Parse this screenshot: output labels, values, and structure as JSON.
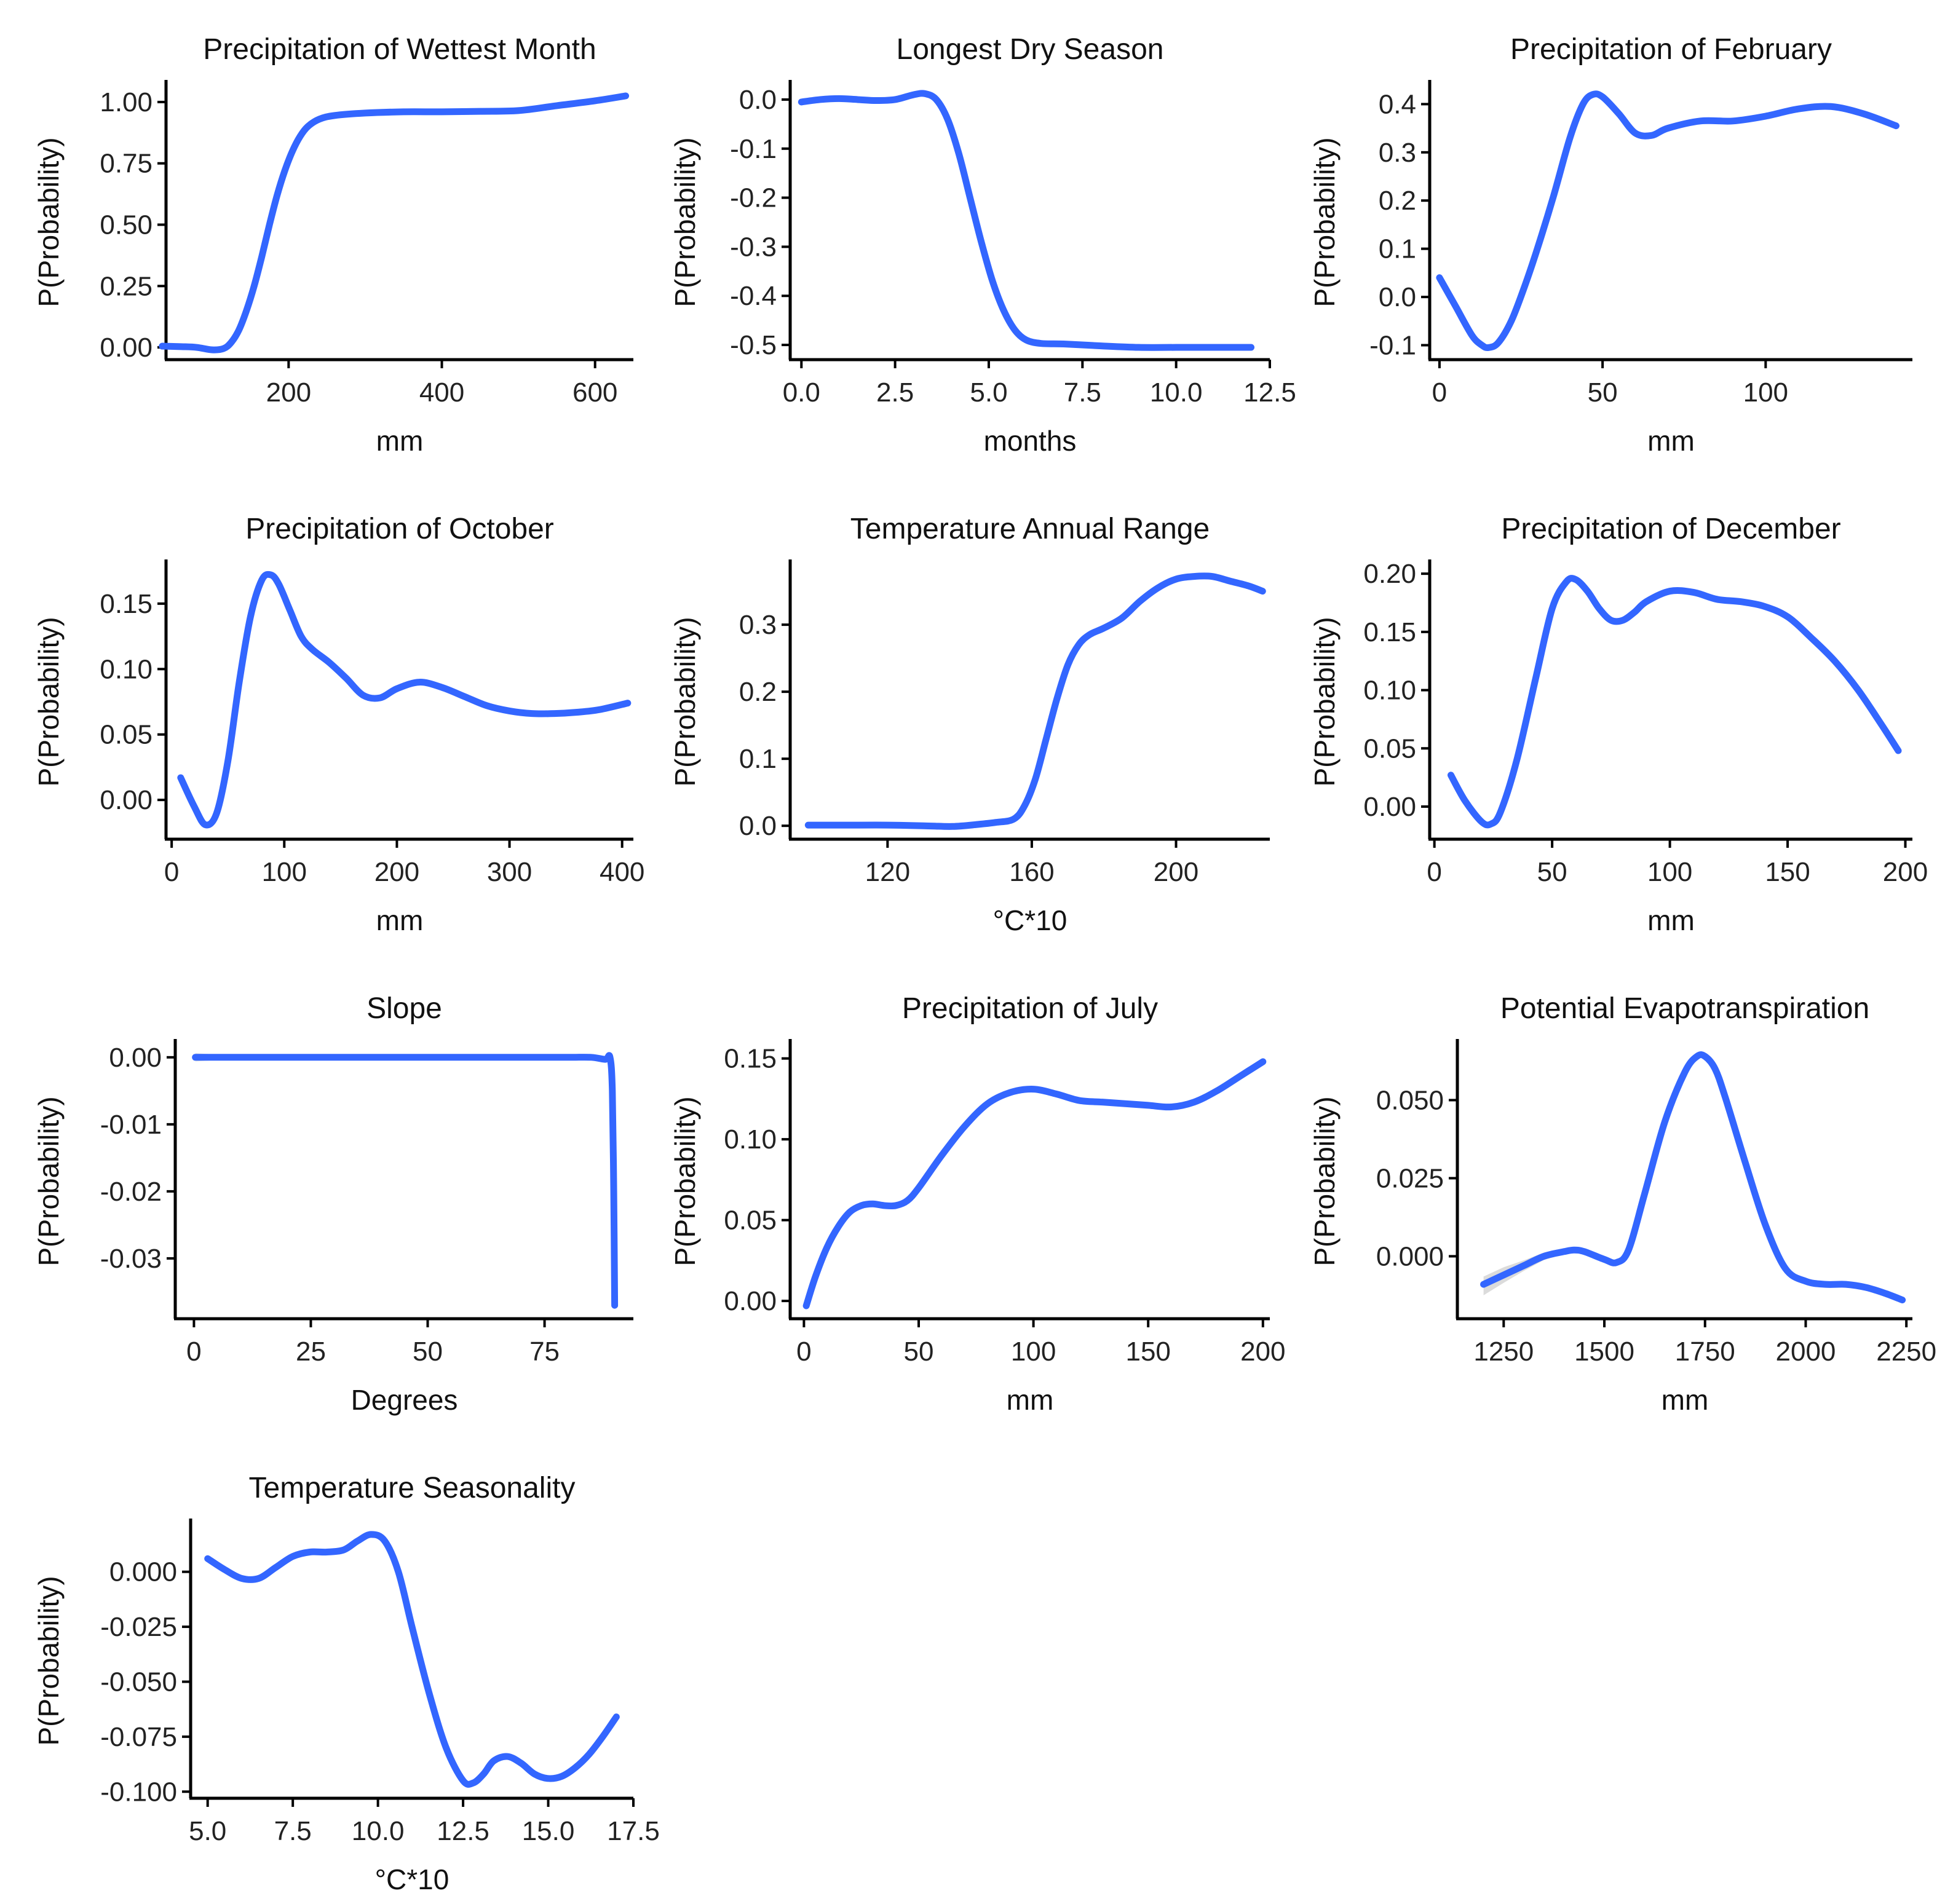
{
  "colors": {
    "line": "#3366FF",
    "band": "#bdbdbd",
    "axis": "#000000",
    "background": "#ffffff"
  },
  "chart_data": [
    {
      "type": "line",
      "title": "Precipitation of Wettest Month",
      "xlabel": "mm",
      "ylabel": "P(Probability)",
      "xlim": [
        40,
        650
      ],
      "ylim": [
        -0.05,
        1.07
      ],
      "xticks": [
        200,
        400,
        600
      ],
      "xticklabels": [
        "200",
        "400",
        "600"
      ],
      "yticks": [
        0,
        0.25,
        0.5,
        0.75,
        1.0
      ],
      "yticklabels": [
        "0.00",
        "0.25",
        "0.50",
        "0.75",
        "1.00"
      ],
      "x": [
        35,
        60,
        80,
        100,
        115,
        125,
        135,
        145,
        155,
        165,
        175,
        185,
        195,
        205,
        215,
        225,
        240,
        260,
        300,
        350,
        400,
        450,
        500,
        550,
        600,
        640
      ],
      "y": [
        0.005,
        0.003,
        0.0,
        -0.01,
        -0.005,
        0.02,
        0.07,
        0.15,
        0.25,
        0.37,
        0.5,
        0.62,
        0.72,
        0.8,
        0.86,
        0.9,
        0.93,
        0.945,
        0.955,
        0.96,
        0.96,
        0.962,
        0.965,
        0.985,
        1.005,
        1.025
      ],
      "band": []
    },
    {
      "type": "line",
      "title": "Longest Dry Season",
      "xlabel": "months",
      "ylabel": "P(Probability)",
      "xlim": [
        -0.3,
        12.5
      ],
      "ylim": [
        -0.53,
        0.03
      ],
      "xticks": [
        0,
        2.5,
        5,
        7.5,
        10,
        12.5
      ],
      "xticklabels": [
        "0.0",
        "2.5",
        "5.0",
        "7.5",
        "10.0",
        "12.5"
      ],
      "yticks": [
        0,
        -0.1,
        -0.2,
        -0.3,
        -0.4,
        -0.5
      ],
      "yticklabels": [
        "0.0",
        "-0.1",
        "-0.2",
        "-0.3",
        "-0.4",
        "-0.5"
      ],
      "x": [
        0.0,
        0.5,
        1.0,
        1.5,
        2.0,
        2.5,
        3.0,
        3.3,
        3.6,
        3.9,
        4.2,
        4.5,
        4.8,
        5.1,
        5.4,
        5.7,
        6.0,
        6.4,
        7.0,
        8.0,
        9.0,
        10.0,
        11.0,
        12.0
      ],
      "y": [
        -0.005,
        0.0,
        0.002,
        0.0,
        -0.002,
        0.0,
        0.01,
        0.012,
        0.0,
        -0.04,
        -0.11,
        -0.2,
        -0.29,
        -0.37,
        -0.43,
        -0.47,
        -0.49,
        -0.497,
        -0.498,
        -0.502,
        -0.505,
        -0.505,
        -0.505,
        -0.505
      ],
      "band": []
    },
    {
      "type": "line",
      "title": "Precipitation of February",
      "xlabel": "mm",
      "ylabel": "P(Probability)",
      "xlim": [
        -3,
        145
      ],
      "ylim": [
        -0.13,
        0.44
      ],
      "xticks": [
        0,
        50,
        100
      ],
      "xticklabels": [
        "0",
        "50",
        "100"
      ],
      "yticks": [
        -0.1,
        0,
        0.1,
        0.2,
        0.3,
        0.4
      ],
      "yticklabels": [
        "-0.1",
        "0.0",
        "0.1",
        "0.2",
        "0.3",
        "0.4"
      ],
      "x": [
        0,
        5,
        10,
        13,
        15,
        18,
        22,
        26,
        30,
        35,
        40,
        44,
        47,
        50,
        55,
        60,
        65,
        70,
        80,
        90,
        100,
        110,
        120,
        130,
        140
      ],
      "y": [
        0.04,
        -0.02,
        -0.08,
        -0.1,
        -0.105,
        -0.095,
        -0.05,
        0.02,
        0.1,
        0.21,
        0.33,
        0.4,
        0.42,
        0.415,
        0.38,
        0.34,
        0.335,
        0.35,
        0.365,
        0.365,
        0.375,
        0.39,
        0.395,
        0.38,
        0.355
      ],
      "band": []
    },
    {
      "type": "line",
      "title": "Precipitation of October",
      "xlabel": "mm",
      "ylabel": "P(Probability)",
      "xlim": [
        -5,
        410
      ],
      "ylim": [
        -0.03,
        0.18
      ],
      "xticks": [
        0,
        100,
        200,
        300,
        400
      ],
      "xticklabels": [
        "0",
        "100",
        "200",
        "300",
        "400"
      ],
      "yticks": [
        0,
        0.05,
        0.1,
        0.15
      ],
      "yticklabels": [
        "0.00",
        "0.05",
        "0.10",
        "0.15"
      ],
      "x": [
        8,
        20,
        30,
        40,
        50,
        60,
        70,
        80,
        88,
        95,
        105,
        115,
        125,
        140,
        155,
        170,
        185,
        200,
        220,
        240,
        260,
        280,
        300,
        320,
        340,
        360,
        380,
        405
      ],
      "y": [
        0.017,
        -0.005,
        -0.019,
        -0.01,
        0.03,
        0.09,
        0.14,
        0.168,
        0.172,
        0.165,
        0.145,
        0.125,
        0.115,
        0.105,
        0.093,
        0.08,
        0.078,
        0.085,
        0.09,
        0.086,
        0.079,
        0.072,
        0.068,
        0.066,
        0.066,
        0.067,
        0.069,
        0.074
      ],
      "band": []
    },
    {
      "type": "line",
      "title": "Temperature Annual Range",
      "xlabel": "°C*10",
      "ylabel": "P(Probability)",
      "xlim": [
        93,
        226
      ],
      "ylim": [
        -0.02,
        0.39
      ],
      "xticks": [
        120,
        160,
        200
      ],
      "xticklabels": [
        "120",
        "160",
        "200"
      ],
      "yticks": [
        0,
        0.1,
        0.2,
        0.3
      ],
      "yticklabels": [
        "0.0",
        "0.1",
        "0.2",
        "0.3"
      ],
      "x": [
        98,
        110,
        120,
        130,
        138,
        145,
        150,
        155,
        158,
        161,
        164,
        167,
        170,
        173,
        176,
        180,
        185,
        190,
        195,
        200,
        205,
        210,
        215,
        220,
        224
      ],
      "y": [
        0.001,
        0.001,
        0.001,
        0.0,
        -0.001,
        0.002,
        0.005,
        0.01,
        0.03,
        0.07,
        0.13,
        0.19,
        0.24,
        0.27,
        0.285,
        0.295,
        0.31,
        0.335,
        0.355,
        0.368,
        0.372,
        0.372,
        0.365,
        0.358,
        0.35
      ],
      "band": []
    },
    {
      "type": "line",
      "title": "Precipitation of December",
      "xlabel": "mm",
      "ylabel": "P(Probability)",
      "xlim": [
        -2,
        203
      ],
      "ylim": [
        -0.028,
        0.208
      ],
      "xticks": [
        0,
        50,
        100,
        150,
        200
      ],
      "xticklabels": [
        "0",
        "50",
        "100",
        "150",
        "200"
      ],
      "yticks": [
        0,
        0.05,
        0.1,
        0.15,
        0.2
      ],
      "yticklabels": [
        "0.00",
        "0.05",
        "0.10",
        "0.15",
        "0.20"
      ],
      "x": [
        7,
        13,
        20,
        24,
        28,
        35,
        43,
        50,
        56,
        60,
        65,
        70,
        75,
        80,
        85,
        90,
        100,
        110,
        120,
        130,
        140,
        150,
        160,
        170,
        180,
        190,
        197
      ],
      "y": [
        0.027,
        0.005,
        -0.013,
        -0.015,
        -0.005,
        0.04,
        0.11,
        0.17,
        0.193,
        0.195,
        0.185,
        0.17,
        0.16,
        0.16,
        0.167,
        0.176,
        0.185,
        0.184,
        0.178,
        0.176,
        0.172,
        0.163,
        0.145,
        0.125,
        0.1,
        0.07,
        0.048
      ],
      "band": []
    },
    {
      "type": "line",
      "title": "Slope",
      "xlabel": "Degrees",
      "ylabel": "P(Probability)",
      "xlim": [
        -4,
        94
      ],
      "ylim": [
        -0.039,
        0.002
      ],
      "xticks": [
        0,
        25,
        50,
        75
      ],
      "xticklabels": [
        "0",
        "25",
        "50",
        "75"
      ],
      "yticks": [
        0,
        -0.01,
        -0.02,
        -0.03
      ],
      "yticklabels": [
        "0.00",
        "-0.01",
        "-0.02",
        "-0.03"
      ],
      "x": [
        0.3,
        10,
        20,
        30,
        40,
        50,
        60,
        70,
        80,
        85,
        88,
        89,
        89.5,
        89.8,
        90
      ],
      "y": [
        0.0,
        0.0,
        0.0,
        0.0,
        0.0,
        0.0,
        0.0,
        0.0,
        0.0,
        0.0,
        -0.0003,
        0.0,
        -0.005,
        -0.02,
        -0.037
      ],
      "band": [
        {
          "x": 0.3,
          "lo": -0.0006,
          "hi": 0.0006
        },
        {
          "x": 3,
          "lo": -0.0005,
          "hi": 0.0005
        },
        {
          "x": 6,
          "lo": -0.0003,
          "hi": 0.0003
        },
        {
          "x": 10,
          "lo": -0.0001,
          "hi": 0.0001
        }
      ]
    },
    {
      "type": "line",
      "title": "Precipitation of July",
      "xlabel": "mm",
      "ylabel": "P(Probability)",
      "xlim": [
        -6,
        203
      ],
      "ylim": [
        -0.011,
        0.159
      ],
      "xticks": [
        0,
        50,
        100,
        150,
        200
      ],
      "xticklabels": [
        "0",
        "50",
        "100",
        "150",
        "200"
      ],
      "yticks": [
        0,
        0.05,
        0.1,
        0.15
      ],
      "yticklabels": [
        "0.00",
        "0.05",
        "0.10",
        "0.15"
      ],
      "x": [
        1,
        5,
        10,
        15,
        20,
        25,
        30,
        35,
        40,
        45,
        50,
        60,
        70,
        80,
        90,
        100,
        110,
        120,
        130,
        140,
        150,
        160,
        170,
        180,
        190,
        200
      ],
      "y": [
        -0.003,
        0.015,
        0.033,
        0.046,
        0.055,
        0.059,
        0.06,
        0.059,
        0.059,
        0.062,
        0.07,
        0.09,
        0.108,
        0.122,
        0.129,
        0.131,
        0.128,
        0.124,
        0.123,
        0.122,
        0.121,
        0.12,
        0.123,
        0.13,
        0.139,
        0.148
      ],
      "band": []
    },
    {
      "type": "line",
      "title": "Potential Evapotranspiration",
      "xlabel": "mm",
      "ylabel": "P(Probability)",
      "xlim": [
        1135,
        2265
      ],
      "ylim": [
        -0.02,
        0.068
      ],
      "xticks": [
        1250,
        1500,
        1750,
        2000,
        2250
      ],
      "xticklabels": [
        "1250",
        "1500",
        "1750",
        "2000",
        "2250"
      ],
      "yticks": [
        0,
        0.025,
        0.05
      ],
      "yticklabels": [
        "0.000",
        "0.025",
        "0.050"
      ],
      "x": [
        1200,
        1250,
        1300,
        1350,
        1400,
        1425,
        1450,
        1500,
        1530,
        1560,
        1600,
        1650,
        1700,
        1730,
        1750,
        1775,
        1800,
        1850,
        1900,
        1950,
        2000,
        2050,
        2100,
        2150,
        2200,
        2240
      ],
      "y": [
        -0.009,
        -0.006,
        -0.003,
        0.0,
        0.0015,
        0.002,
        0.0015,
        -0.001,
        -0.002,
        0.002,
        0.02,
        0.043,
        0.059,
        0.064,
        0.064,
        0.06,
        0.051,
        0.03,
        0.01,
        -0.004,
        -0.008,
        -0.009,
        -0.009,
        -0.01,
        -0.012,
        -0.014
      ],
      "band": [
        {
          "x": 1200,
          "lo": -0.0125,
          "hi": -0.0065
        },
        {
          "x": 1250,
          "lo": -0.0085,
          "hi": -0.0035
        },
        {
          "x": 1300,
          "lo": -0.0047,
          "hi": -0.0013
        },
        {
          "x": 1350,
          "lo": -0.0012,
          "hi": 0.0012
        },
        {
          "x": 1400,
          "lo": 0.0007,
          "hi": 0.0023
        }
      ]
    },
    {
      "type": "line",
      "title": "Temperature Seasonality",
      "xlabel": "°C*10",
      "ylabel": "P(Probability)",
      "xlim": [
        4.5,
        17.5
      ],
      "ylim": [
        -0.103,
        0.022
      ],
      "xticks": [
        5,
        7.5,
        10,
        12.5,
        15,
        17.5
      ],
      "xticklabels": [
        "5.0",
        "7.5",
        "10.0",
        "12.5",
        "15.0",
        "17.5"
      ],
      "yticks": [
        0,
        -0.025,
        -0.05,
        -0.075,
        -0.1
      ],
      "yticklabels": [
        "0.000",
        "-0.025",
        "-0.050",
        "-0.075",
        "-0.100"
      ],
      "x": [
        5.0,
        5.5,
        6.0,
        6.5,
        7.0,
        7.5,
        8.0,
        8.5,
        9.0,
        9.4,
        9.8,
        10.2,
        10.6,
        11.0,
        11.5,
        12.0,
        12.5,
        12.8,
        13.1,
        13.4,
        13.8,
        14.2,
        14.6,
        15.0,
        15.4,
        15.8,
        16.2,
        16.6,
        17.0
      ],
      "y": [
        0.006,
        0.001,
        -0.003,
        -0.003,
        0.002,
        0.007,
        0.009,
        0.009,
        0.01,
        0.014,
        0.017,
        0.014,
        0.0,
        -0.025,
        -0.055,
        -0.08,
        -0.095,
        -0.096,
        -0.092,
        -0.086,
        -0.084,
        -0.087,
        -0.092,
        -0.094,
        -0.093,
        -0.089,
        -0.083,
        -0.075,
        -0.066
      ],
      "band": []
    }
  ]
}
